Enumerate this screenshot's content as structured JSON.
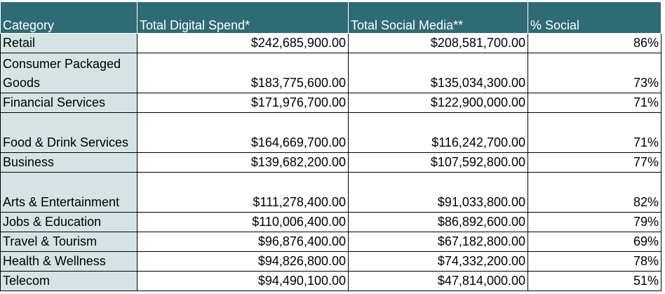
{
  "headers": [
    "Category",
    "Total Digital Spend*",
    "Total Social Media**",
    "% Social"
  ],
  "rows": [
    {
      "category": "Retail",
      "digital": "$242,685,900.00",
      "social": "$208,581,700.00",
      "pct": "86%"
    },
    {
      "category": "Consumer Packaged Goods",
      "digital": "$183,775,600.00",
      "social": "$135,034,300.00",
      "pct": "73%"
    },
    {
      "category": "Financial Services",
      "digital": "$171,976,700.00",
      "social": "$122,900,000.00",
      "pct": "71%"
    },
    {
      "category": "Food & Drink Services",
      "digital": "$164,669,700.00",
      "social": "$116,242,700.00",
      "pct": "71%"
    },
    {
      "category": "Business",
      "digital": "$139,682,200.00",
      "social": "$107,592,800.00",
      "pct": "77%"
    },
    {
      "category": "Arts & Entertainment",
      "digital": "$111,278,400.00",
      "social": "$91,033,800.00",
      "pct": "82%"
    },
    {
      "category": "Jobs & Education",
      "digital": "$110,006,400.00",
      "social": "$86,892,600.00",
      "pct": "79%"
    },
    {
      "category": "Travel & Tourism",
      "digital": "$96,876,400.00",
      "social": "$67,182,800.00",
      "pct": "69%"
    },
    {
      "category": "Health & Wellness",
      "digital": "$94,826,800.00",
      "social": "$74,332,200.00",
      "pct": "78%"
    },
    {
      "category": "Telecom",
      "digital": "$94,490,100.00",
      "social": "$47,814,000.00",
      "pct": "51%"
    }
  ],
  "colors": {
    "header_bg": "#2f6b75",
    "category_bg": "#d5e3e5"
  }
}
